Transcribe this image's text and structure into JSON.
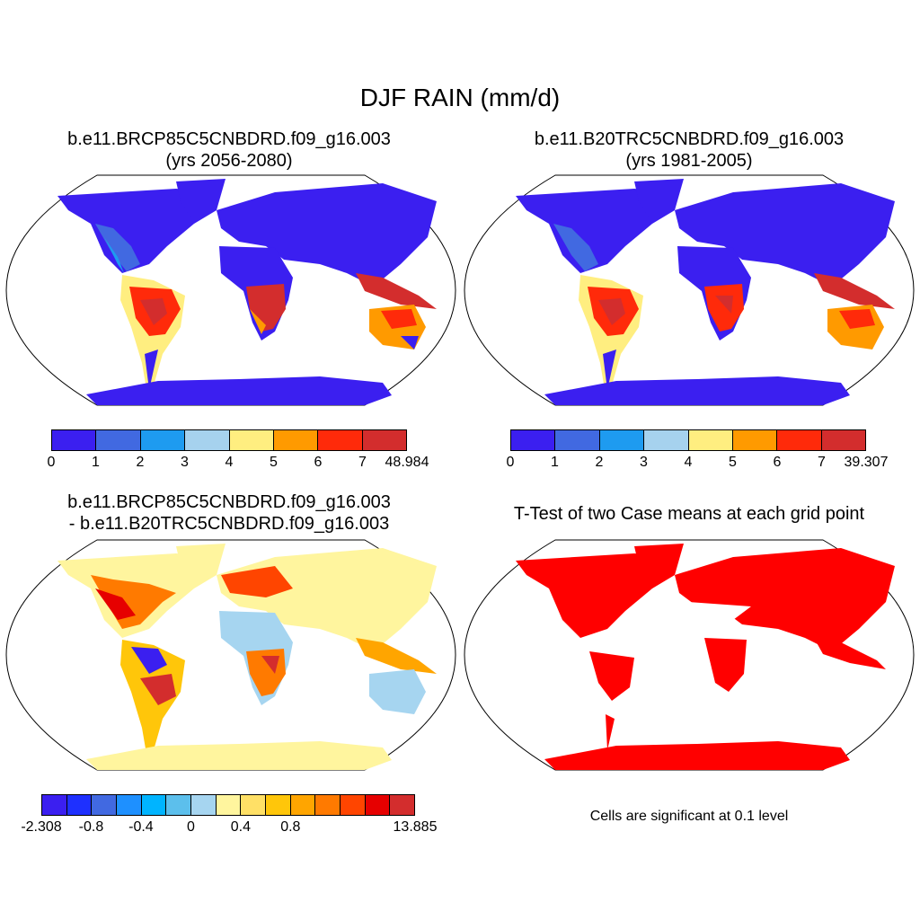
{
  "title": "DJF RAIN (mm/d)",
  "panels": {
    "p1": {
      "title_line1": "b.e11.BRCP85C5CNBDRD.f09_g16.003",
      "title_line2": "(yrs 2056-2080)"
    },
    "p2": {
      "title_line1": "b.e11.B20TRC5CNBDRD.f09_g16.003",
      "title_line2": "(yrs 1981-2005)"
    },
    "p3": {
      "title_line1": "b.e11.BRCP85C5CNBDRD.f09_g16.003",
      "title_line2": "- b.e11.B20TRC5CNBDRD.f09_g16.003"
    },
    "p4": {
      "title_line1": "T-Test of two Case means at each grid point",
      "note": "Cells are significant at 0.1 level"
    }
  },
  "colorbars": {
    "cb1": {
      "colors": [
        "#3b1ff0",
        "#4169e1",
        "#1e9bf0",
        "#a6d2ee",
        "#ffee80",
        "#ff9a00",
        "#ff2a0a",
        "#d32d2d"
      ],
      "labels": [
        "0",
        "1",
        "2",
        "3",
        "4",
        "5",
        "6",
        "7",
        "48.984"
      ]
    },
    "cb2": {
      "colors": [
        "#3b1ff0",
        "#4169e1",
        "#1e9bf0",
        "#a6d2ee",
        "#ffee80",
        "#ff9a00",
        "#ff2a0a",
        "#d32d2d"
      ],
      "labels": [
        "0",
        "1",
        "2",
        "3",
        "4",
        "5",
        "6",
        "7",
        "39.307"
      ]
    },
    "cb3": {
      "colors": [
        "#3b1ff0",
        "#1e30ff",
        "#4169e1",
        "#1e90ff",
        "#00b4ff",
        "#5cbfec",
        "#a6d5f0",
        "#fff59e",
        "#ffe066",
        "#ffc60a",
        "#ffa500",
        "#ff7a00",
        "#ff4500",
        "#e60000",
        "#d32d2d"
      ],
      "labels": [
        "-2.308",
        "",
        "-0.8",
        "",
        "-0.4",
        "",
        "0",
        "",
        "0.4",
        "",
        "0.8",
        "",
        "",
        "",
        "",
        "13.885"
      ]
    }
  }
}
